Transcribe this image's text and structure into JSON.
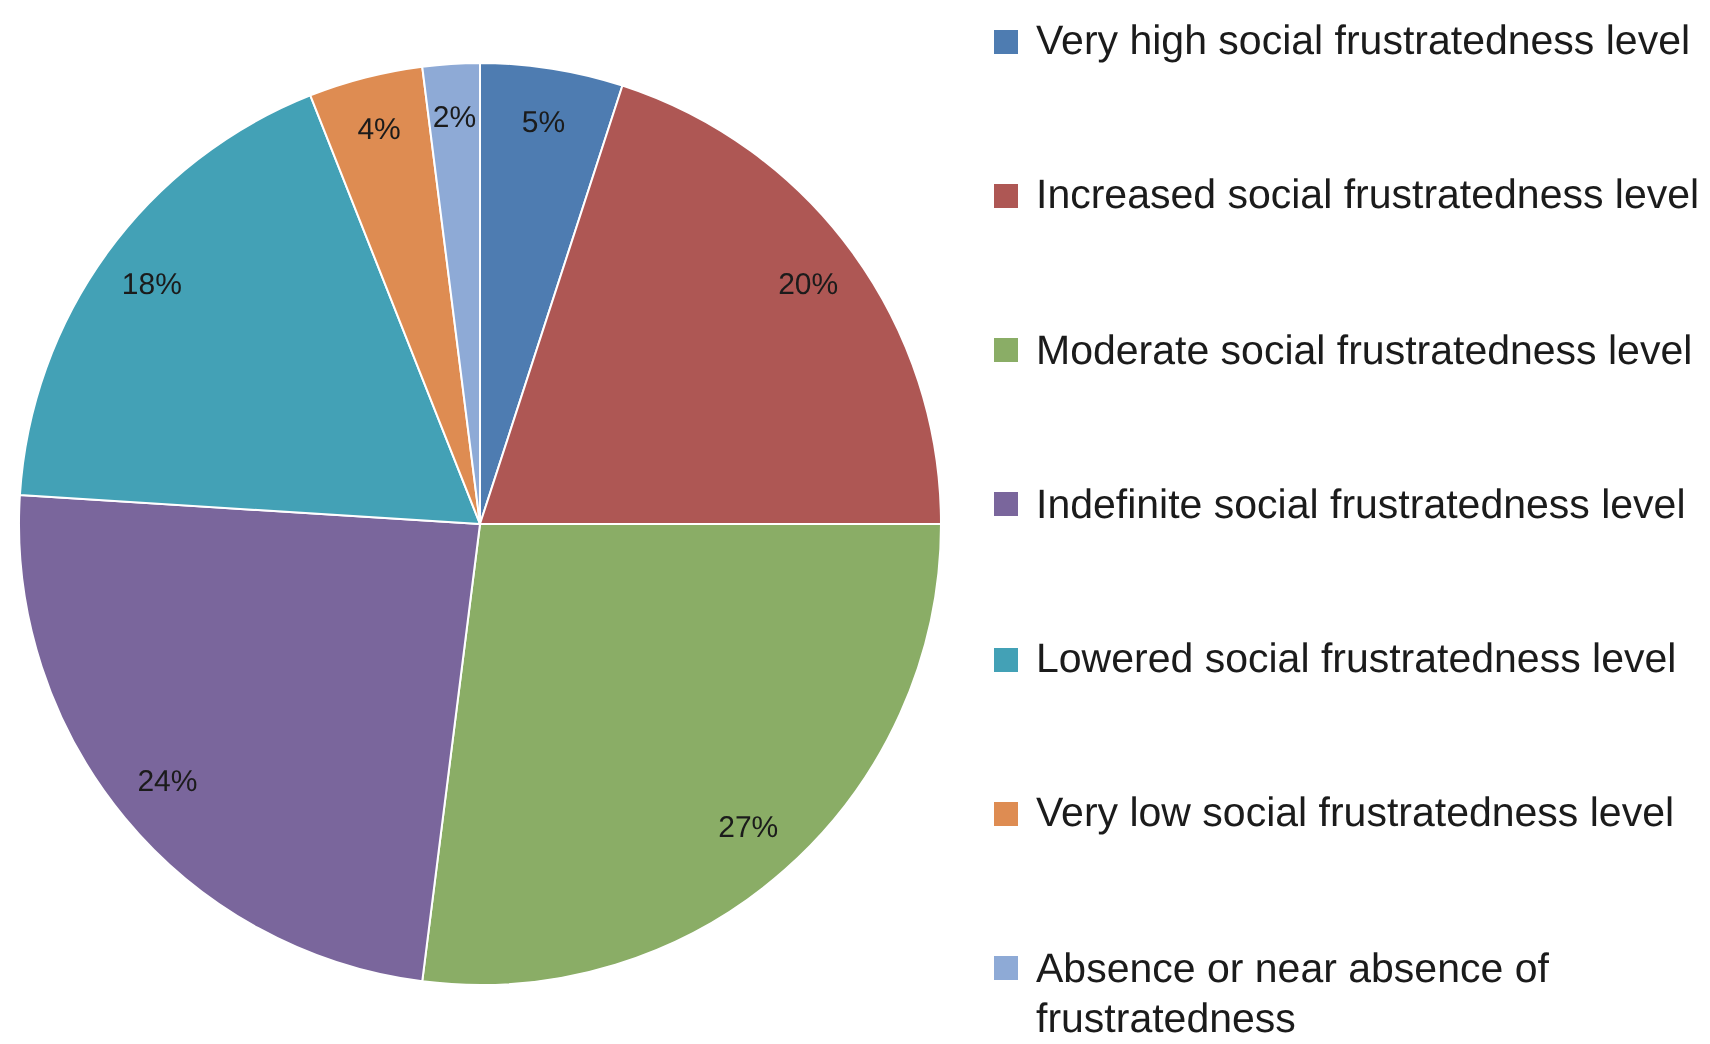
{
  "chart_data": {
    "type": "pie",
    "categories": [
      "Very high social frustratedness level",
      "Increased social frustratedness level",
      "Moderate social frustratedness level",
      "Indefinite social frustratedness level",
      "Lowered social frustratedness level",
      "Very low social frustratedness level",
      "Absence or near absence of frustratedness"
    ],
    "values": [
      5,
      20,
      27,
      24,
      18,
      4,
      2
    ],
    "colors": [
      "#4e7cb1",
      "#ae5754",
      "#8aad66",
      "#7a669c",
      "#43a1b6",
      "#de8c52",
      "#8eaad6"
    ],
    "value_labels": [
      "5%",
      "20%",
      "27%",
      "24%",
      "18%",
      "4%",
      "2%"
    ],
    "legend": "right"
  }
}
